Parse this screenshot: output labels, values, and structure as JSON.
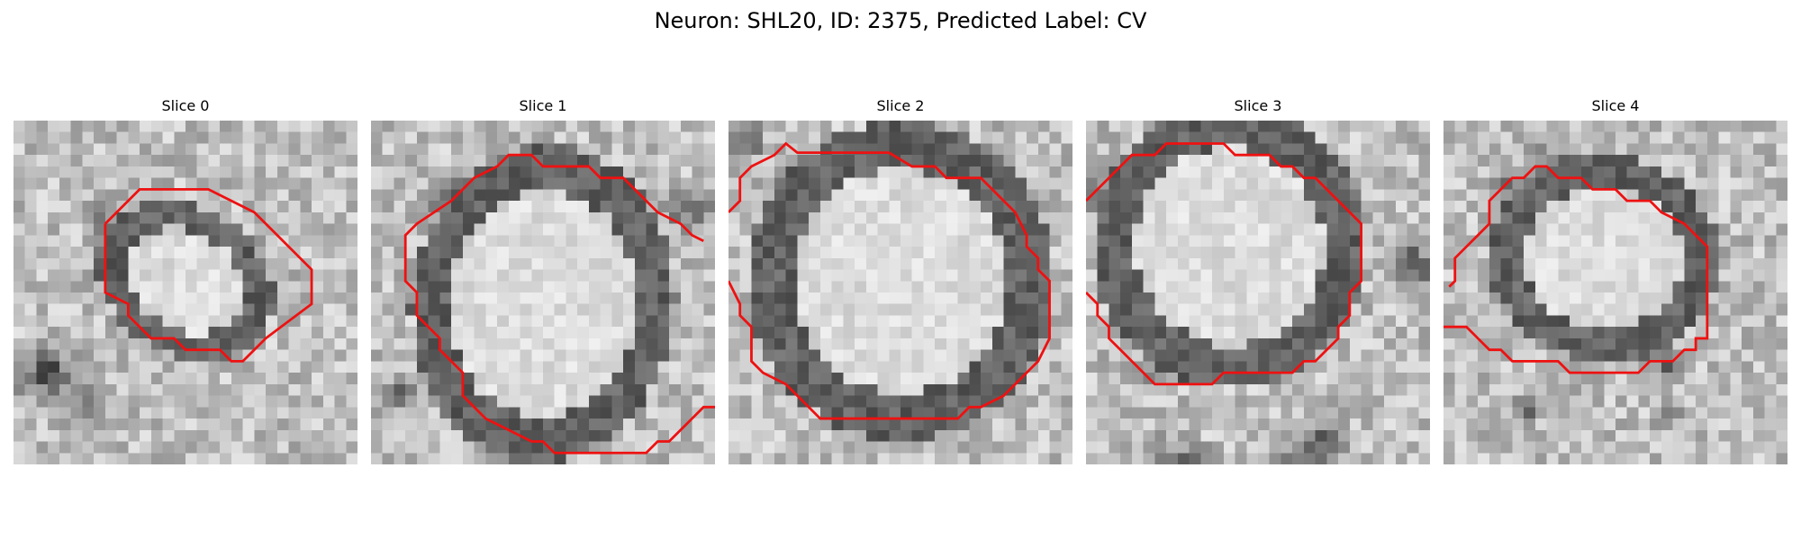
{
  "figure": {
    "title": "Neuron: SHL20, ID: 2375, Predicted Label: CV"
  },
  "panels": [
    {
      "title": "Slice 0"
    },
    {
      "title": "Slice 1"
    },
    {
      "title": "Slice 2"
    },
    {
      "title": "Slice 3"
    },
    {
      "title": "Slice 4"
    }
  ],
  "colors": {
    "contour": "#ee1111",
    "background": "#ffffff",
    "membrane": "#2a2a2a",
    "cytoplasm": "#d8d8d8"
  },
  "icons": {
    "image": "grayscale-em-slice",
    "overlay": "red-segmentation-contour"
  }
}
